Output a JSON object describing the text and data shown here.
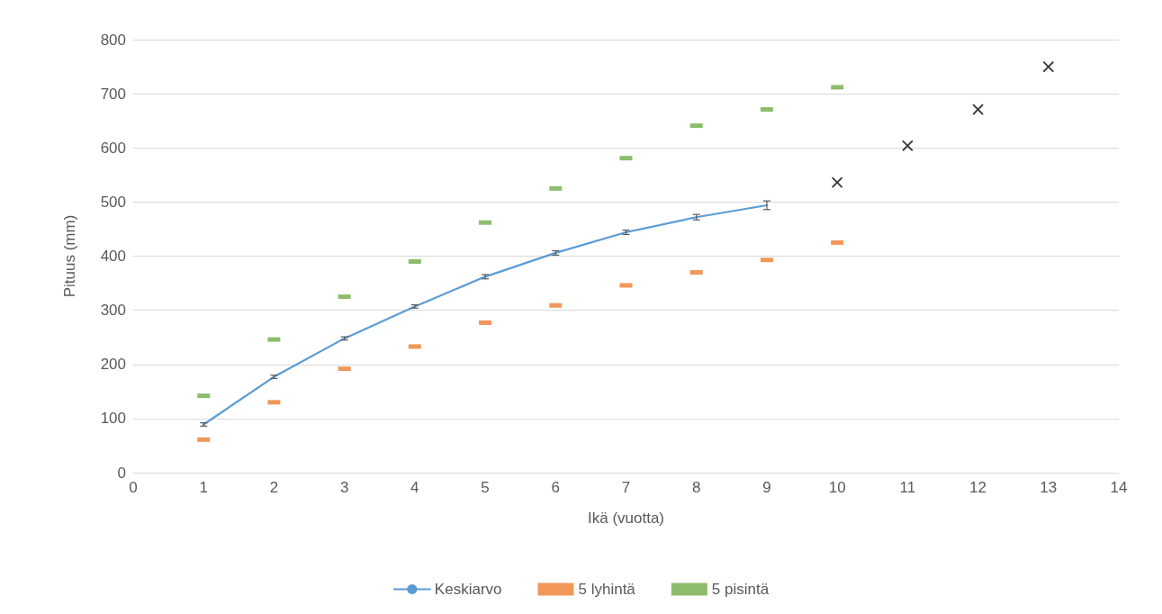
{
  "chart_data": {
    "type": "scatter",
    "xlabel": "Ikä (vuotta)",
    "ylabel": "Pituus (mm)",
    "xlim": [
      0,
      14
    ],
    "xticks": [
      0,
      1,
      2,
      3,
      4,
      5,
      6,
      7,
      8,
      9,
      10,
      11,
      12,
      13,
      14
    ],
    "ylim": [
      0,
      800
    ],
    "yticks": [
      0,
      100,
      200,
      300,
      400,
      500,
      600,
      700,
      800
    ],
    "grid": "y",
    "legend": "bottom",
    "series": [
      {
        "name": "Keskiarvo",
        "type": "line",
        "marker": "none",
        "line_style": "solid",
        "color": "#5b9bd5",
        "x": [
          1,
          2,
          3,
          4,
          5,
          6,
          7,
          8,
          9
        ],
        "values": [
          89,
          177,
          248,
          307,
          362,
          406,
          444,
          472,
          494
        ],
        "errors": [
          3,
          3,
          3,
          3,
          4,
          4,
          4,
          5,
          8
        ]
      },
      {
        "name": "5 lyhintä",
        "color": "#ed7d31",
        "x": [
          1,
          2,
          3,
          4,
          5,
          6,
          7,
          8,
          9,
          10
        ],
        "values": [
          61,
          130,
          192,
          233,
          277,
          309,
          346,
          370,
          393,
          425
        ]
      },
      {
        "name": "5 pisintä",
        "color": "#70ad47",
        "x": [
          1,
          2,
          3,
          4,
          5,
          6,
          7,
          8,
          9,
          10
        ],
        "values": [
          142,
          246,
          325,
          390,
          462,
          525,
          581,
          641,
          671,
          712
        ]
      },
      {
        "marker": "cross",
        "color": "#000000",
        "x": [
          10,
          11,
          12,
          13
        ],
        "values": [
          536,
          604,
          671,
          750
        ]
      }
    ]
  }
}
